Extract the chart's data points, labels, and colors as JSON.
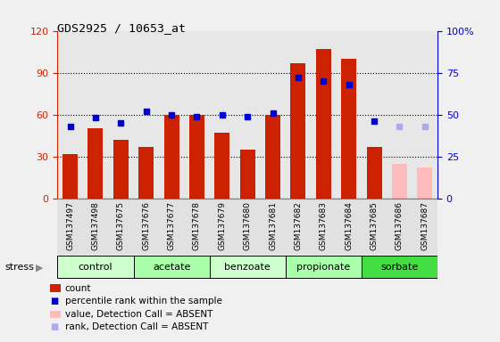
{
  "title": "GDS2925 / 10653_at",
  "samples": [
    "GSM137497",
    "GSM137498",
    "GSM137675",
    "GSM137676",
    "GSM137677",
    "GSM137678",
    "GSM137679",
    "GSM137680",
    "GSM137681",
    "GSM137682",
    "GSM137683",
    "GSM137684",
    "GSM137685",
    "GSM137686",
    "GSM137687"
  ],
  "count_values": [
    32,
    50,
    42,
    37,
    60,
    60,
    47,
    35,
    60,
    97,
    107,
    100,
    37,
    25,
    22
  ],
  "rank_values": [
    43,
    48,
    45,
    52,
    50,
    49,
    50,
    49,
    51,
    72,
    70,
    68,
    46,
    43,
    43
  ],
  "absent_flags": [
    false,
    false,
    false,
    false,
    false,
    false,
    false,
    false,
    false,
    false,
    false,
    false,
    false,
    true,
    true
  ],
  "groups": [
    {
      "label": "control",
      "start": 0,
      "end": 3
    },
    {
      "label": "acetate",
      "start": 3,
      "end": 6
    },
    {
      "label": "benzoate",
      "start": 6,
      "end": 9
    },
    {
      "label": "propionate",
      "start": 9,
      "end": 12
    },
    {
      "label": "sorbate",
      "start": 12,
      "end": 15
    }
  ],
  "group_colors": [
    "#ccffcc",
    "#aaffaa",
    "#ccffcc",
    "#aaffaa",
    "#44dd44"
  ],
  "bar_color_present": "#cc2200",
  "bar_color_absent": "#ffbbbb",
  "rank_color_present": "#0000cc",
  "rank_color_absent": "#aaaaee",
  "left_ylim": [
    0,
    120
  ],
  "right_ylim": [
    0,
    100
  ],
  "left_yticks": [
    0,
    30,
    60,
    90,
    120
  ],
  "right_yticks": [
    0,
    25,
    50,
    75,
    100
  ],
  "right_yticklabels": [
    "0",
    "25",
    "50",
    "75",
    "100%"
  ],
  "col_bg_color": "#d8d8d8",
  "fig_bg_color": "#f0f0f0"
}
